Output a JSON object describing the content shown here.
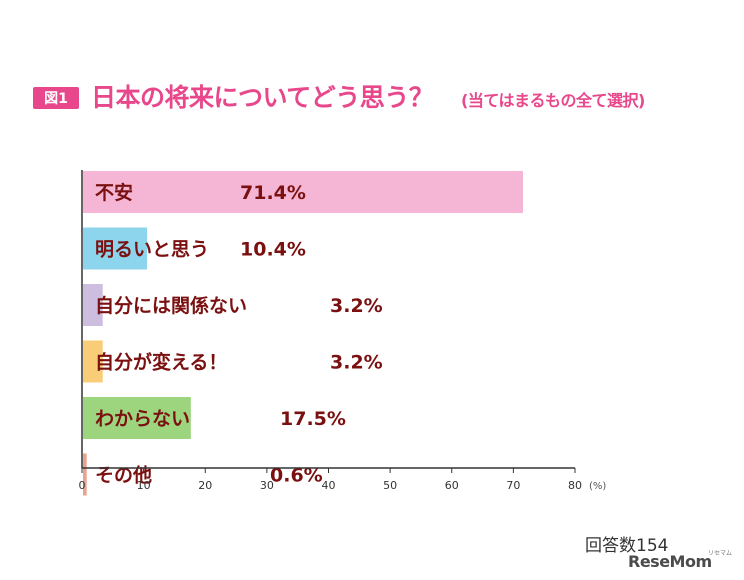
{
  "title": {
    "badge": "図1",
    "main": "日本の将来についてどう思う？",
    "sub": "(当てはまるもの全て選択)"
  },
  "respondents": "回答数154",
  "logo": {
    "text": "ReseMom",
    "sub": "リセマム"
  },
  "chart_data": {
    "type": "bar",
    "orientation": "horizontal",
    "categories": [
      "不安",
      "明るいと思う",
      "自分には関係ない",
      "自分が変える！",
      "わからない",
      "その他"
    ],
    "values": [
      71.4,
      10.4,
      3.2,
      3.2,
      17.5,
      0.6
    ],
    "value_labels": [
      "71.4%",
      "10.4%",
      "3.2%",
      "3.2%",
      "17.5%",
      "0.6%"
    ],
    "colors": [
      "#f4b6d4",
      "#8dd5ec",
      "#cdbedf",
      "#f9cc78",
      "#9dd47e",
      "#e8a391"
    ],
    "xlim": [
      0,
      80
    ],
    "xticks": [
      0,
      10,
      20,
      30,
      40,
      50,
      60,
      70,
      80
    ],
    "xunit": "(%)",
    "grid": false,
    "legend": "none"
  }
}
